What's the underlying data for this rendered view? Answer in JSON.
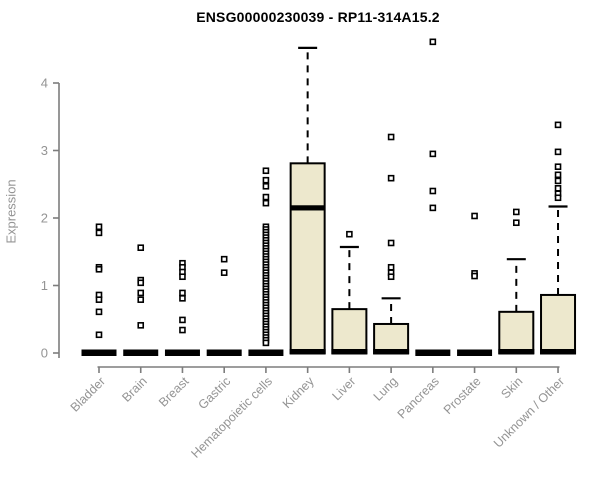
{
  "chart_data": {
    "type": "boxplot",
    "title": "ENSG00000230039 - RP11-314A15.2",
    "ylabel": "Expression",
    "xlabel": "",
    "ylim": [
      0,
      4.7
    ],
    "yticks": [
      0,
      1,
      2,
      3,
      4
    ],
    "grid": false,
    "legend": "none",
    "colors": {
      "box_fill": "#EDE8CD",
      "box_stroke": "#000000",
      "median": "#000000",
      "whisker": "#000000",
      "axis": "#7d7d7d",
      "tick_label": "#949494",
      "title": "#000000",
      "background": "#ffffff"
    },
    "categories": [
      "Bladder",
      "Brain",
      "Breast",
      "Gastric",
      "Hematopoietic cells",
      "Kidney",
      "Liver",
      "Lung",
      "Pancreas",
      "Prostate",
      "Skin",
      "Unknown / Other"
    ],
    "boxes": [
      {
        "category": "Bladder",
        "q1": 0,
        "median": 0,
        "q3": 0,
        "whisker_low": 0,
        "whisker_high": 0,
        "outliers": [
          1.87,
          1.78,
          1.27,
          1.24,
          0.86,
          0.79,
          0.61,
          0.27
        ]
      },
      {
        "category": "Brain",
        "q1": 0,
        "median": 0,
        "q3": 0,
        "whisker_low": 0,
        "whisker_high": 0,
        "outliers": [
          1.56,
          1.08,
          1.04,
          0.89,
          0.79,
          0.41
        ]
      },
      {
        "category": "Breast",
        "q1": 0,
        "median": 0,
        "q3": 0,
        "whisker_low": 0,
        "whisker_high": 0,
        "outliers": [
          1.33,
          1.27,
          1.2,
          1.13,
          0.89,
          0.81,
          0.49,
          0.34
        ]
      },
      {
        "category": "Gastric",
        "q1": 0,
        "median": 0,
        "q3": 0,
        "whisker_low": 0,
        "whisker_high": 0,
        "outliers": [
          1.39,
          1.19
        ]
      },
      {
        "category": "Hematopoietic cells",
        "q1": 0,
        "median": 0,
        "q3": 0,
        "whisker_low": 0,
        "whisker_high": 0,
        "outliers": [
          2.7,
          2.56,
          2.47,
          2.31,
          2.22,
          1.87,
          1.83,
          1.79,
          1.75,
          1.71,
          1.67,
          1.63,
          1.59,
          1.55,
          1.51,
          1.47,
          1.43,
          1.39,
          1.35,
          1.31,
          1.27,
          1.23,
          1.19,
          1.15,
          1.11,
          1.07,
          1.03,
          0.99,
          0.95,
          0.91,
          0.87,
          0.83,
          0.79,
          0.75,
          0.71,
          0.67,
          0.63,
          0.59,
          0.55,
          0.51,
          0.47,
          0.43,
          0.39,
          0.35,
          0.31,
          0.27,
          0.23,
          0.19,
          0.15
        ]
      },
      {
        "category": "Kidney",
        "q1": 0,
        "median": 2.15,
        "q3": 2.81,
        "whisker_low": 0,
        "whisker_high": 4.52,
        "outliers": []
      },
      {
        "category": "Liver",
        "q1": 0,
        "median": 0.02,
        "q3": 0.65,
        "whisker_low": 0,
        "whisker_high": 1.57,
        "outliers": [
          1.76
        ]
      },
      {
        "category": "Lung",
        "q1": 0,
        "median": 0.02,
        "q3": 0.43,
        "whisker_low": 0,
        "whisker_high": 0.81,
        "outliers": [
          3.2,
          2.59,
          1.63,
          1.27,
          1.19,
          1.13
        ]
      },
      {
        "category": "Pancreas",
        "q1": 0,
        "median": 0,
        "q3": 0,
        "whisker_low": 0,
        "whisker_high": 0,
        "outliers": [
          4.61,
          2.95,
          2.4,
          2.15
        ]
      },
      {
        "category": "Prostate",
        "q1": 0,
        "median": 0,
        "q3": 0,
        "whisker_low": 0,
        "whisker_high": 0,
        "outliers": [
          2.03,
          1.18,
          1.14
        ]
      },
      {
        "category": "Skin",
        "q1": 0,
        "median": 0.02,
        "q3": 0.61,
        "whisker_low": 0,
        "whisker_high": 1.39,
        "outliers": [
          2.09,
          1.93
        ]
      },
      {
        "category": "Unknown / Other",
        "q1": 0,
        "median": 0.02,
        "q3": 0.86,
        "whisker_low": 0,
        "whisker_high": 2.17,
        "outliers": [
          3.38,
          2.98,
          2.76,
          2.64,
          2.55,
          2.44,
          2.36,
          2.3
        ]
      }
    ]
  }
}
